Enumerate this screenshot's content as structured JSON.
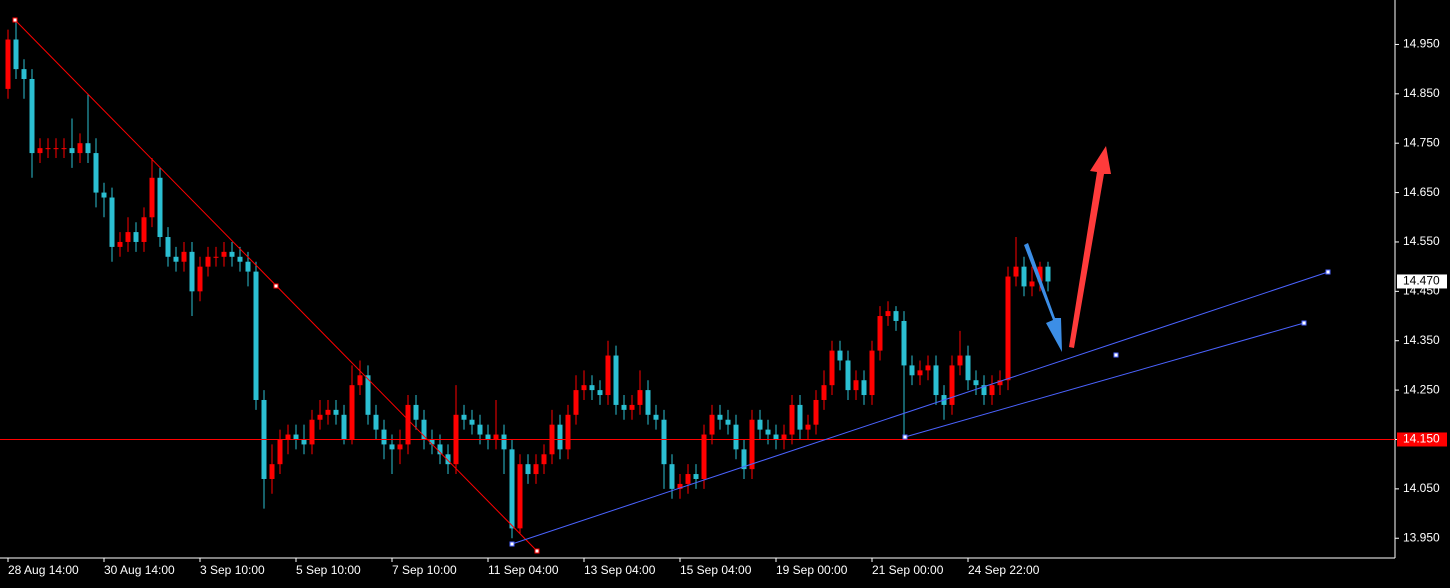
{
  "chart_data": {
    "type": "candlestick",
    "up_color": "#ff0000",
    "down_color": "#2bbfd2",
    "categories": [
      "28 Aug 14:00",
      null,
      null,
      null,
      null,
      null,
      null,
      null,
      null,
      null,
      null,
      null,
      "30 Aug 14:00",
      null,
      null,
      null,
      null,
      null,
      null,
      null,
      null,
      null,
      null,
      null,
      "3 Sep 10:00",
      null,
      null,
      null,
      null,
      null,
      null,
      null,
      null,
      null,
      null,
      null,
      "5 Sep 10:00",
      null,
      null,
      null,
      null,
      null,
      null,
      null,
      null,
      null,
      null,
      null,
      "7 Sep 10:00",
      null,
      null,
      null,
      null,
      null,
      null,
      null,
      null,
      null,
      null,
      null,
      "11 Sep 04:00",
      null,
      null,
      null,
      null,
      null,
      null,
      null,
      null,
      null,
      null,
      null,
      "13 Sep 04:00",
      null,
      null,
      null,
      null,
      null,
      null,
      null,
      null,
      null,
      null,
      null,
      "15 Sep 04:00",
      null,
      null,
      null,
      null,
      null,
      null,
      null,
      null,
      null,
      null,
      null,
      "19 Sep 00:00",
      null,
      null,
      null,
      null,
      null,
      null,
      null,
      null,
      null,
      null,
      null,
      "21 Sep 00:00",
      null,
      null,
      null,
      null,
      null,
      null,
      null,
      null,
      null,
      null,
      null,
      "24 Sep 22:00",
      null,
      null,
      null,
      null,
      null,
      null,
      null,
      null,
      null,
      null
    ],
    "open": [
      14.86,
      14.96,
      14.9,
      14.88,
      14.73,
      14.74,
      14.74,
      14.74,
      14.74,
      14.73,
      14.75,
      14.73,
      14.65,
      14.64,
      14.54,
      14.55,
      14.57,
      14.55,
      14.6,
      14.68,
      14.56,
      14.52,
      14.51,
      14.53,
      14.45,
      14.5,
      14.52,
      14.52,
      14.53,
      14.52,
      14.51,
      14.49,
      14.23,
      14.07,
      14.1,
      14.15,
      14.16,
      14.15,
      14.14,
      14.19,
      14.2,
      14.21,
      14.2,
      14.15,
      14.26,
      14.28,
      14.2,
      14.17,
      14.14,
      14.13,
      14.14,
      14.22,
      14.19,
      14.15,
      14.14,
      14.12,
      14.1,
      14.2,
      14.19,
      14.18,
      14.16,
      14.15,
      14.16,
      14.13,
      13.97,
      14.1,
      14.08,
      14.1,
      14.12,
      14.18,
      14.13,
      14.2,
      14.25,
      14.26,
      14.25,
      14.24,
      14.32,
      14.22,
      14.21,
      14.22,
      14.25,
      14.2,
      14.19,
      14.1,
      14.05,
      14.06,
      14.08,
      14.07,
      14.16,
      14.2,
      14.19,
      14.18,
      14.13,
      14.09,
      14.19,
      14.17,
      14.16,
      14.15,
      14.16,
      14.22,
      14.17,
      14.18,
      14.23,
      14.26,
      14.33,
      14.31,
      14.25,
      14.27,
      14.24,
      14.33,
      14.4,
      14.41,
      14.39,
      14.3,
      14.28,
      14.29,
      14.3,
      14.24,
      14.22,
      14.3,
      14.32,
      14.27,
      14.26,
      14.24,
      14.26,
      14.27,
      14.48,
      14.5,
      14.46,
      14.47,
      14.5
    ],
    "high": [
      14.98,
      15.0,
      14.92,
      14.9,
      14.76,
      14.76,
      14.76,
      14.76,
      14.8,
      14.77,
      14.85,
      14.76,
      14.67,
      14.66,
      14.57,
      14.6,
      14.59,
      14.62,
      14.72,
      14.7,
      14.58,
      14.54,
      14.55,
      14.55,
      14.52,
      14.54,
      14.54,
      14.55,
      14.55,
      14.54,
      14.53,
      14.51,
      14.25,
      14.14,
      14.17,
      14.18,
      14.18,
      14.18,
      14.21,
      14.23,
      14.23,
      14.23,
      14.22,
      14.3,
      14.31,
      14.3,
      14.22,
      14.19,
      14.16,
      14.17,
      14.24,
      14.24,
      14.21,
      14.17,
      14.16,
      14.14,
      14.26,
      14.22,
      14.21,
      14.2,
      14.18,
      14.23,
      14.18,
      14.15,
      14.12,
      14.12,
      14.12,
      14.14,
      14.21,
      14.2,
      14.22,
      14.28,
      14.29,
      14.28,
      14.27,
      14.35,
      14.34,
      14.24,
      14.24,
      14.29,
      14.27,
      14.22,
      14.21,
      14.12,
      14.08,
      14.1,
      14.1,
      14.18,
      14.22,
      14.22,
      14.21,
      14.2,
      14.15,
      14.21,
      14.21,
      14.19,
      14.18,
      14.18,
      14.24,
      14.24,
      14.2,
      14.25,
      14.29,
      14.35,
      14.35,
      14.33,
      14.29,
      14.29,
      14.35,
      14.42,
      14.43,
      14.42,
      14.41,
      14.32,
      14.31,
      14.32,
      14.32,
      14.26,
      14.32,
      14.37,
      14.34,
      14.29,
      14.28,
      14.28,
      14.29,
      14.5,
      14.56,
      14.52,
      14.5,
      14.51,
      14.51
    ],
    "low": [
      14.84,
      14.88,
      14.84,
      14.68,
      14.71,
      14.72,
      14.72,
      14.72,
      14.7,
      14.71,
      14.71,
      14.62,
      14.6,
      14.51,
      14.52,
      14.53,
      14.53,
      14.53,
      14.58,
      14.54,
      14.5,
      14.49,
      14.49,
      14.4,
      14.43,
      14.48,
      14.5,
      14.5,
      14.5,
      14.49,
      14.46,
      14.21,
      14.01,
      14.04,
      14.08,
      14.12,
      14.13,
      14.12,
      14.12,
      14.17,
      14.18,
      14.18,
      14.14,
      14.14,
      14.24,
      14.18,
      14.15,
      14.11,
      14.08,
      14.1,
      14.12,
      14.17,
      14.13,
      14.12,
      14.1,
      14.08,
      14.08,
      14.17,
      14.16,
      14.14,
      14.13,
      14.13,
      14.08,
      13.95,
      13.96,
      14.06,
      14.06,
      14.08,
      14.1,
      14.11,
      14.11,
      14.18,
      14.23,
      14.23,
      14.22,
      14.22,
      14.2,
      14.19,
      14.19,
      14.2,
      14.18,
      14.17,
      14.05,
      14.03,
      14.03,
      14.04,
      14.05,
      14.05,
      14.14,
      14.17,
      14.16,
      14.11,
      14.07,
      14.07,
      14.15,
      14.14,
      14.13,
      14.13,
      14.14,
      14.15,
      14.15,
      14.16,
      14.21,
      14.24,
      14.29,
      14.23,
      14.23,
      14.22,
      14.22,
      14.31,
      14.38,
      14.37,
      14.15,
      14.26,
      14.26,
      14.27,
      14.22,
      14.19,
      14.2,
      14.28,
      14.25,
      14.24,
      14.22,
      14.22,
      14.24,
      14.25,
      14.46,
      14.44,
      14.44,
      14.45,
      14.45
    ],
    "close": [
      14.96,
      14.9,
      14.88,
      14.73,
      14.74,
      14.74,
      14.74,
      14.74,
      14.73,
      14.75,
      14.73,
      14.65,
      14.64,
      14.54,
      14.55,
      14.57,
      14.55,
      14.6,
      14.68,
      14.56,
      14.52,
      14.51,
      14.53,
      14.45,
      14.5,
      14.52,
      14.52,
      14.53,
      14.52,
      14.51,
      14.49,
      14.23,
      14.07,
      14.1,
      14.15,
      14.16,
      14.15,
      14.14,
      14.19,
      14.2,
      14.21,
      14.2,
      14.15,
      14.26,
      14.28,
      14.2,
      14.17,
      14.14,
      14.13,
      14.14,
      14.22,
      14.19,
      14.15,
      14.14,
      14.12,
      14.1,
      14.2,
      14.19,
      14.18,
      14.16,
      14.15,
      14.16,
      14.13,
      13.97,
      14.1,
      14.08,
      14.1,
      14.12,
      14.18,
      14.13,
      14.2,
      14.25,
      14.26,
      14.25,
      14.24,
      14.32,
      14.22,
      14.21,
      14.22,
      14.25,
      14.2,
      14.19,
      14.1,
      14.05,
      14.06,
      14.08,
      14.07,
      14.16,
      14.2,
      14.19,
      14.18,
      14.13,
      14.09,
      14.19,
      14.17,
      14.16,
      14.15,
      14.16,
      14.22,
      14.17,
      14.18,
      14.23,
      14.26,
      14.33,
      14.31,
      14.25,
      14.27,
      14.24,
      14.33,
      14.4,
      14.41,
      14.39,
      14.3,
      14.28,
      14.29,
      14.3,
      14.24,
      14.22,
      14.3,
      14.32,
      14.27,
      14.26,
      14.24,
      14.26,
      14.27,
      14.48,
      14.5,
      14.46,
      14.47,
      14.5,
      14.47
    ],
    "ylim": [
      13.91,
      15.04
    ],
    "yticks": [
      {
        "value": 13.95,
        "label": "13.950"
      },
      {
        "value": 14.05,
        "label": "14.050"
      },
      {
        "value": 14.15,
        "label": "14.150"
      },
      {
        "value": 14.25,
        "label": "14.250"
      },
      {
        "value": 14.35,
        "label": "14.350"
      },
      {
        "value": 14.45,
        "label": "14.450"
      },
      {
        "value": 14.55,
        "label": "14.550"
      },
      {
        "value": 14.65,
        "label": "14.650"
      },
      {
        "value": 14.75,
        "label": "14.750"
      },
      {
        "value": 14.85,
        "label": "14.850"
      },
      {
        "value": 14.95,
        "label": "14.950"
      }
    ],
    "hline": {
      "value": 14.15,
      "label": "14.150",
      "color": "#ff0000"
    },
    "last_price": {
      "value": 14.47,
      "label": "14.470"
    }
  }
}
